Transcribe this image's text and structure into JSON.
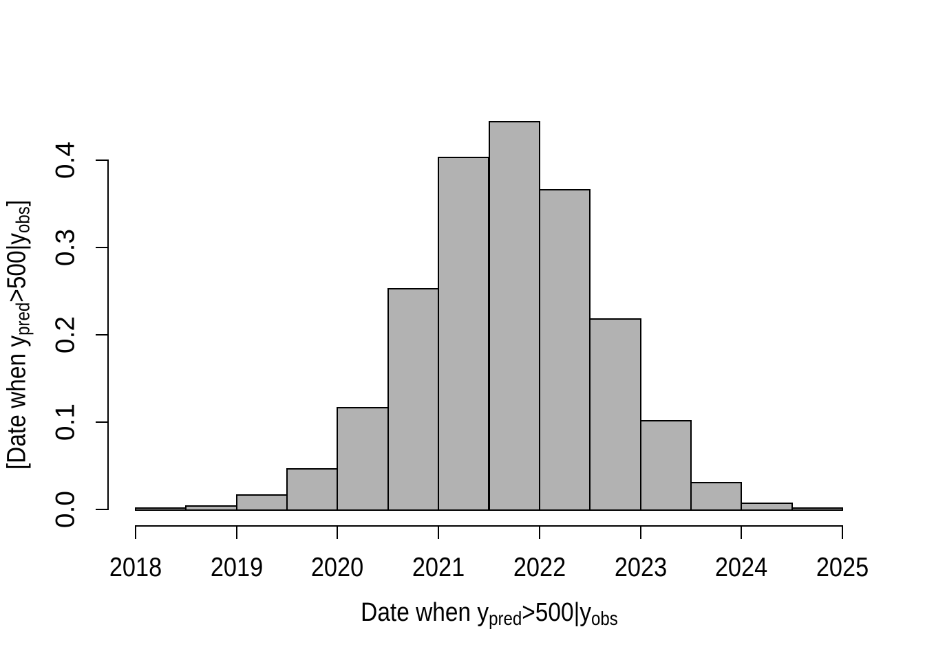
{
  "chart_data": {
    "type": "bar",
    "subtype": "histogram-density",
    "title": "",
    "xlabel": "Date when y_pred>500|y_obs",
    "ylabel": "[Date when y_pred>500|y_obs]",
    "xlabel_parts": {
      "pre": "Date when y",
      "sub1": "pred",
      "mid": ">500|y",
      "sub2": "obs",
      "post": ""
    },
    "ylabel_parts": {
      "pre": "[Date when y",
      "sub1": "pred",
      "mid": ">500|y",
      "sub2": "obs",
      "post": "]"
    },
    "xlim": [
      2018,
      2025
    ],
    "ylim": [
      0,
      0.45
    ],
    "x_ticks": [
      2018,
      2019,
      2020,
      2021,
      2022,
      2023,
      2024,
      2025
    ],
    "x_tick_labels": [
      "2018",
      "2019",
      "2020",
      "2021",
      "2022",
      "2023",
      "2024",
      "2025"
    ],
    "y_ticks": [
      0.0,
      0.1,
      0.2,
      0.3,
      0.4
    ],
    "y_tick_labels": [
      "0.0",
      "0.1",
      "0.2",
      "0.3",
      "0.4"
    ],
    "bin_width_years": 0.5,
    "bins": [
      {
        "start": 2018.0,
        "end": 2018.5,
        "density": 0.001
      },
      {
        "start": 2018.5,
        "end": 2019.0,
        "density": 0.003
      },
      {
        "start": 2019.0,
        "end": 2019.5,
        "density": 0.016
      },
      {
        "start": 2019.5,
        "end": 2020.0,
        "density": 0.046
      },
      {
        "start": 2020.0,
        "end": 2020.5,
        "density": 0.116
      },
      {
        "start": 2020.5,
        "end": 2021.0,
        "density": 0.252
      },
      {
        "start": 2021.0,
        "end": 2021.5,
        "density": 0.402
      },
      {
        "start": 2021.5,
        "end": 2022.0,
        "density": 0.443
      },
      {
        "start": 2022.0,
        "end": 2022.5,
        "density": 0.365
      },
      {
        "start": 2022.5,
        "end": 2023.0,
        "density": 0.217
      },
      {
        "start": 2023.0,
        "end": 2023.5,
        "density": 0.101
      },
      {
        "start": 2023.5,
        "end": 2024.0,
        "density": 0.03
      },
      {
        "start": 2024.0,
        "end": 2024.5,
        "density": 0.006
      },
      {
        "start": 2024.5,
        "end": 2025.0,
        "density": 0.001
      }
    ],
    "bar_fill": "#b2b2b2",
    "bar_border": "#000000",
    "axis_color": "#000000",
    "text_color": "#000000",
    "grid": false,
    "legend": null
  }
}
